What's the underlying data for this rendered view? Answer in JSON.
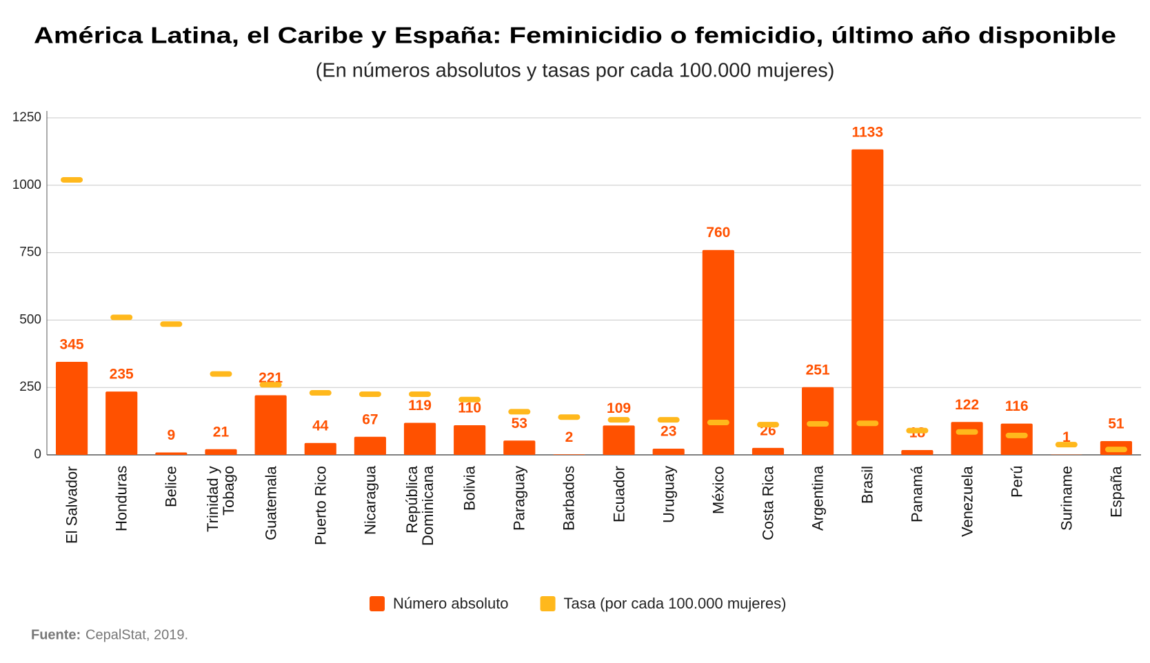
{
  "chart_data": {
    "type": "bar",
    "title": "América Latina, el Caribe y España: Feminicidio o femicidio, último año disponible",
    "subtitle": "(En números absolutos y tasas por cada 100.000 mujeres)",
    "categories": [
      "El Salvador",
      "Honduras",
      "Belice",
      "Trinidad y Tobago",
      "Guatemala",
      "Puerto Rico",
      "Nicaragua",
      "República Dominicana",
      "Bolivia",
      "Paraguay",
      "Barbados",
      "Ecuador",
      "Uruguay",
      "México",
      "Costa Rica",
      "Argentina",
      "Brasil",
      "Panamá",
      "Venezuela",
      "Perú",
      "Suriname",
      "España"
    ],
    "series": [
      {
        "name": "Número absoluto",
        "color": "#ff5100",
        "values": [
          345,
          235,
          9,
          21,
          221,
          44,
          67,
          119,
          110,
          53,
          2,
          109,
          23,
          760,
          26,
          251,
          1133,
          18,
          122,
          116,
          1,
          51
        ]
      },
      {
        "name": "Tasa (por cada 100.000 mujeres)",
        "color": "#ffb81c",
        "values": [
          1020,
          510,
          485,
          300,
          260,
          230,
          225,
          225,
          205,
          160,
          140,
          130,
          130,
          120,
          112,
          115,
          117,
          90,
          85,
          72,
          38,
          20
        ]
      }
    ],
    "ylim": [
      0,
      1250
    ],
    "yticks": [
      0,
      250,
      500,
      750,
      1000,
      1250
    ],
    "grid": true,
    "legend": "bottom",
    "source_label": "Fuente:",
    "source": "CepalStat, 2019."
  }
}
